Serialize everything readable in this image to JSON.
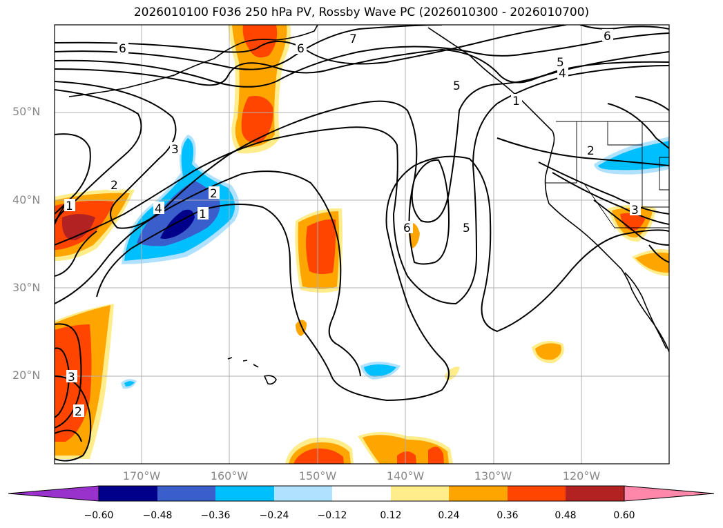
{
  "title": "2026010100 F036 250 hPa PV, Rossby Wave PC (2026010300 - 2026010700)",
  "axes": {
    "lat_labels": [
      "50°N",
      "40°N",
      "30°N",
      "20°N"
    ],
    "lon_labels": [
      "170°W",
      "160°W",
      "150°W",
      "140°W",
      "130°W",
      "120°W"
    ],
    "label_color": "#888888"
  },
  "colorbar": {
    "ticks": [
      "−0.60",
      "−0.48",
      "−0.36",
      "−0.24",
      "−0.12",
      "0.12",
      "0.24",
      "0.36",
      "0.48",
      "0.60"
    ],
    "colors": [
      "#9932cc",
      "#00008b",
      "#3a5fcd",
      "#00bfff",
      "#b0e2ff",
      "#ffffff",
      "#ffec8b",
      "#ffa500",
      "#ff4500",
      "#b22222",
      "#ff88aa"
    ]
  },
  "contour_labels": [
    "6",
    "7",
    "6",
    "6",
    "5",
    "4",
    "5",
    "1",
    "3",
    "2",
    "1",
    "4",
    "2",
    "1",
    "6",
    "5",
    "2",
    "3",
    "3",
    "2"
  ]
}
